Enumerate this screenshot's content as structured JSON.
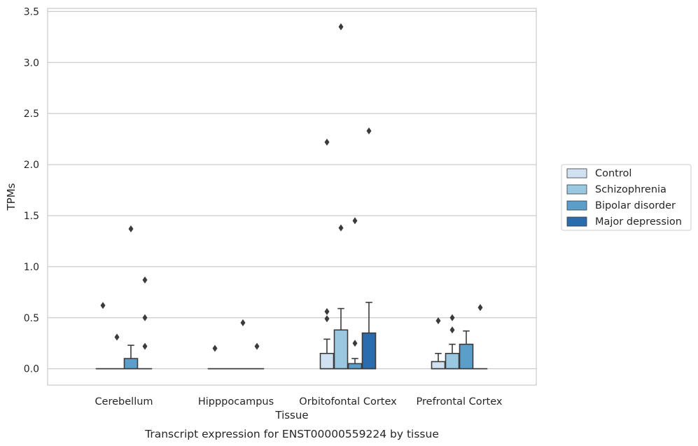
{
  "chart_data": {
    "type": "box",
    "title": "Transcript expression for ENST00000559224 by tissue",
    "xlabel": "Tissue",
    "ylabel": "TPMs",
    "ylim": [
      -0.16,
      3.53
    ],
    "yticks": [
      0.0,
      0.5,
      1.0,
      1.5,
      2.0,
      2.5,
      3.0,
      3.5
    ],
    "ytick_labels": [
      "0.0",
      "0.5",
      "1.0",
      "1.5",
      "2.0",
      "2.5",
      "3.0",
      "3.5"
    ],
    "categories": [
      "Cerebellum",
      "Hipppocampus",
      "Orbitofontal Cortex",
      "Prefrontal Cortex"
    ],
    "grid": "horizontal",
    "legend_position": "right",
    "series": [
      {
        "name": "Control",
        "color": "#d0e1f2",
        "boxes": [
          {
            "q1": 0,
            "median": 0,
            "q3": 0,
            "whisker_high": 0,
            "outliers": [
              0.62
            ]
          },
          {
            "q1": 0,
            "median": 0,
            "q3": 0,
            "whisker_high": 0,
            "outliers": [
              0.2
            ]
          },
          {
            "q1": 0,
            "median": 0,
            "q3": 0.15,
            "whisker_high": 0.29,
            "outliers": [
              0.49,
              0.56,
              2.22
            ]
          },
          {
            "q1": 0,
            "median": 0,
            "q3": 0.07,
            "whisker_high": 0.15,
            "outliers": [
              0.47
            ]
          }
        ]
      },
      {
        "name": "Schizophrenia",
        "color": "#9ac8e0",
        "boxes": [
          {
            "q1": 0,
            "median": 0,
            "q3": 0,
            "whisker_high": 0,
            "outliers": [
              0.31
            ]
          },
          {
            "q1": 0,
            "median": 0,
            "q3": 0,
            "whisker_high": 0,
            "outliers": []
          },
          {
            "q1": 0,
            "median": 0,
            "q3": 0.38,
            "whisker_high": 0.59,
            "outliers": [
              1.38,
              3.35
            ]
          },
          {
            "q1": 0,
            "median": 0,
            "q3": 0.15,
            "whisker_high": 0.24,
            "outliers": [
              0.38,
              0.5
            ]
          }
        ]
      },
      {
        "name": "Bipolar disorder",
        "color": "#5a9ec9",
        "boxes": [
          {
            "q1": 0,
            "median": 0,
            "q3": 0.1,
            "whisker_high": 0.23,
            "outliers": [
              1.37
            ]
          },
          {
            "q1": 0,
            "median": 0,
            "q3": 0,
            "whisker_high": 0,
            "outliers": [
              0.45
            ]
          },
          {
            "q1": 0,
            "median": 0,
            "q3": 0.05,
            "whisker_high": 0.1,
            "outliers": [
              0.25,
              1.45
            ]
          },
          {
            "q1": 0,
            "median": 0,
            "q3": 0.24,
            "whisker_high": 0.37,
            "outliers": []
          }
        ]
      },
      {
        "name": "Major depression",
        "color": "#2a6cad",
        "boxes": [
          {
            "q1": 0,
            "median": 0,
            "q3": 0,
            "whisker_high": 0,
            "outliers": [
              0.22,
              0.5,
              0.87
            ]
          },
          {
            "q1": 0,
            "median": 0,
            "q3": 0,
            "whisker_high": 0,
            "outliers": [
              0.22
            ]
          },
          {
            "q1": 0,
            "median": 0,
            "q3": 0.35,
            "whisker_high": 0.65,
            "outliers": [
              2.33
            ]
          },
          {
            "q1": 0,
            "median": 0,
            "q3": 0,
            "whisker_high": 0,
            "outliers": [
              0.6
            ]
          }
        ]
      }
    ]
  }
}
